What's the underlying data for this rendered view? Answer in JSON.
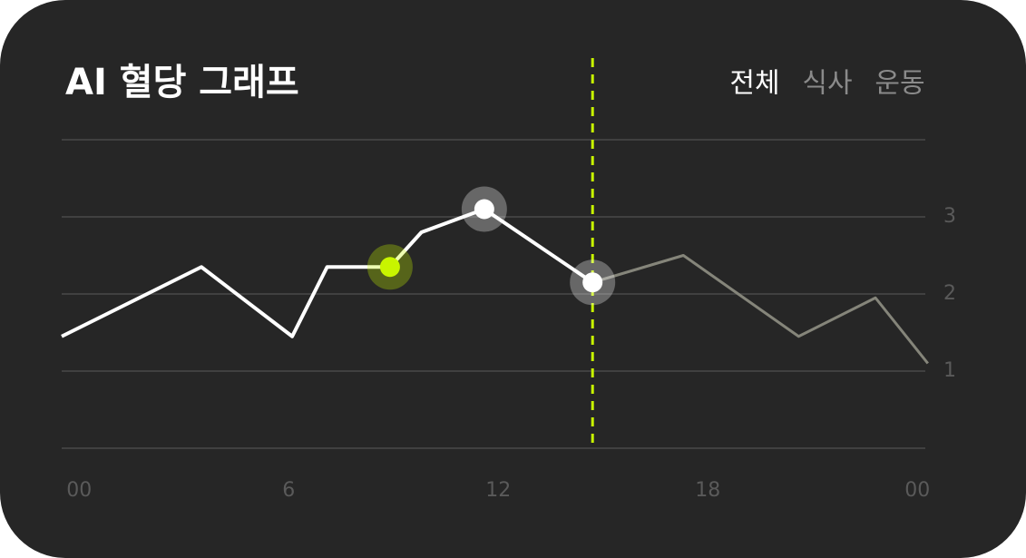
{
  "chart_data": {
    "type": "line",
    "title": "AI 혈당 그래프",
    "tabs": [
      {
        "label": "전체",
        "active": true
      },
      {
        "label": "식사",
        "active": false
      },
      {
        "label": "운동",
        "active": false
      }
    ],
    "series": [
      {
        "color": "#ffffff",
        "x": [
          -0.5,
          3.5,
          6.1,
          7.1,
          8.9,
          9.8,
          11.6,
          14.7
        ],
        "values": [
          1.45,
          2.35,
          1.45,
          2.35,
          2.35,
          2.8,
          3.1,
          2.15
        ],
        "point_colors": [
          null,
          null,
          null,
          null,
          "#c8f500",
          null,
          "#ffffff",
          "#ffffff"
        ]
      },
      {
        "color": "#85857a",
        "x": [
          14.7,
          17.3,
          20.6,
          22.8,
          24.3
        ],
        "values": [
          2.15,
          2.5,
          1.45,
          1.95,
          1.1
        ]
      }
    ],
    "cursor_x": 14.7,
    "cursor_color": "#c8f500",
    "xlim": [
      -0.5,
      24.5
    ],
    "xticks": [
      {
        "value": 0,
        "label": "00"
      },
      6,
      12,
      18,
      {
        "value": 24,
        "label": "00"
      }
    ],
    "ylim": [
      0,
      4
    ],
    "yticks": [
      1,
      2,
      3
    ],
    "grid": true
  }
}
